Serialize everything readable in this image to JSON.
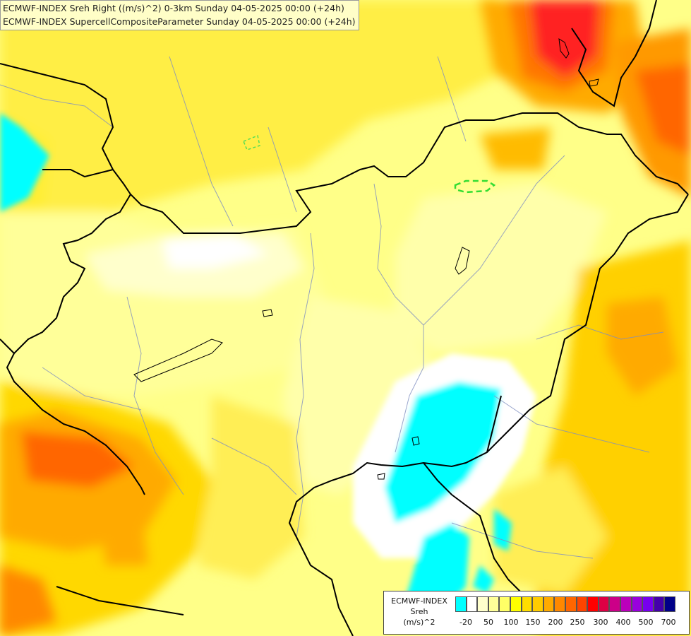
{
  "titles": {
    "line1": "ECMWF-INDEX Sreh Right ((m/s)^2) 0-3km Sunday 04-05-2025 00:00 (+24h)",
    "line2": "ECMWF-INDEX SupercellCompositeParameter Sunday 04-05-2025 00:00 (+24h)"
  },
  "legend": {
    "title_line1": "ECMWF-INDEX",
    "title_line2": "Sreh",
    "title_line3": "(m/s)^2",
    "colors": [
      "#00ffff",
      "#ffffff",
      "#ffffcc",
      "#ffff99",
      "#ffff66",
      "#ffff00",
      "#ffdd00",
      "#ffcc00",
      "#ffaa00",
      "#ff8800",
      "#ff6600",
      "#ff4400",
      "#ff0000",
      "#dd0044",
      "#cc0088",
      "#bb00bb",
      "#9900dd",
      "#7700ee",
      "#4400aa",
      "#000088"
    ],
    "ticks": [
      "-20",
      "50",
      "100",
      "150",
      "200",
      "250",
      "300",
      "400",
      "500",
      "700"
    ]
  }
}
